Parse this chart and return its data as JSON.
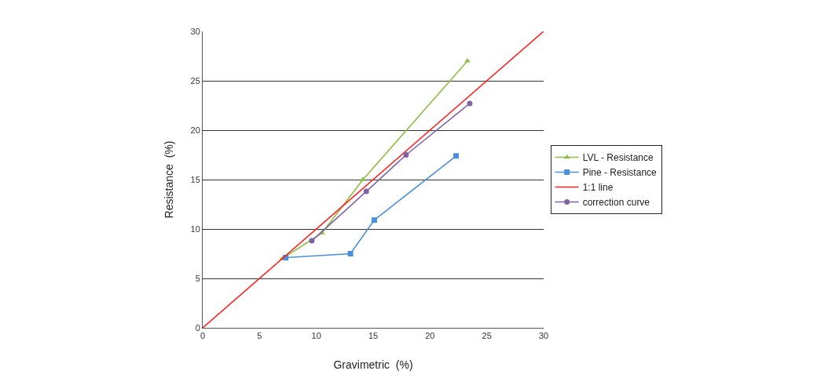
{
  "chart_data": {
    "type": "line",
    "xlabel": "Gravimetric  (%)",
    "ylabel": "Resistance  (%)",
    "xlim": [
      0,
      30
    ],
    "xticks": [
      0,
      5,
      10,
      15,
      20,
      25,
      30
    ],
    "ylim": [
      0,
      30
    ],
    "yticks": [
      0,
      5,
      10,
      15,
      20,
      25,
      30
    ],
    "grid": "y",
    "legend": "right",
    "series": [
      {
        "name": "LVL - Resistance",
        "color": "#8fbc45",
        "marker": "triangle",
        "x": [
          7.0,
          10.5,
          14.1,
          23.3
        ],
        "values": [
          7.0,
          9.6,
          15.0,
          27.0
        ]
      },
      {
        "name": "Pine - Resistance",
        "color": "#4a90d9",
        "marker": "square",
        "x": [
          7.3,
          13.0,
          15.1,
          22.3
        ],
        "values": [
          7.1,
          7.5,
          10.9,
          17.4
        ]
      },
      {
        "name": "1:1 line",
        "color": "#ff2020",
        "marker": "none",
        "x": [
          0,
          30
        ],
        "values": [
          0,
          30
        ]
      },
      {
        "name": "correction curve",
        "color": "#8064a2",
        "marker": "circle",
        "x": [
          9.6,
          14.4,
          17.9,
          23.5
        ],
        "values": [
          8.8,
          13.8,
          17.5,
          22.7
        ]
      }
    ]
  }
}
